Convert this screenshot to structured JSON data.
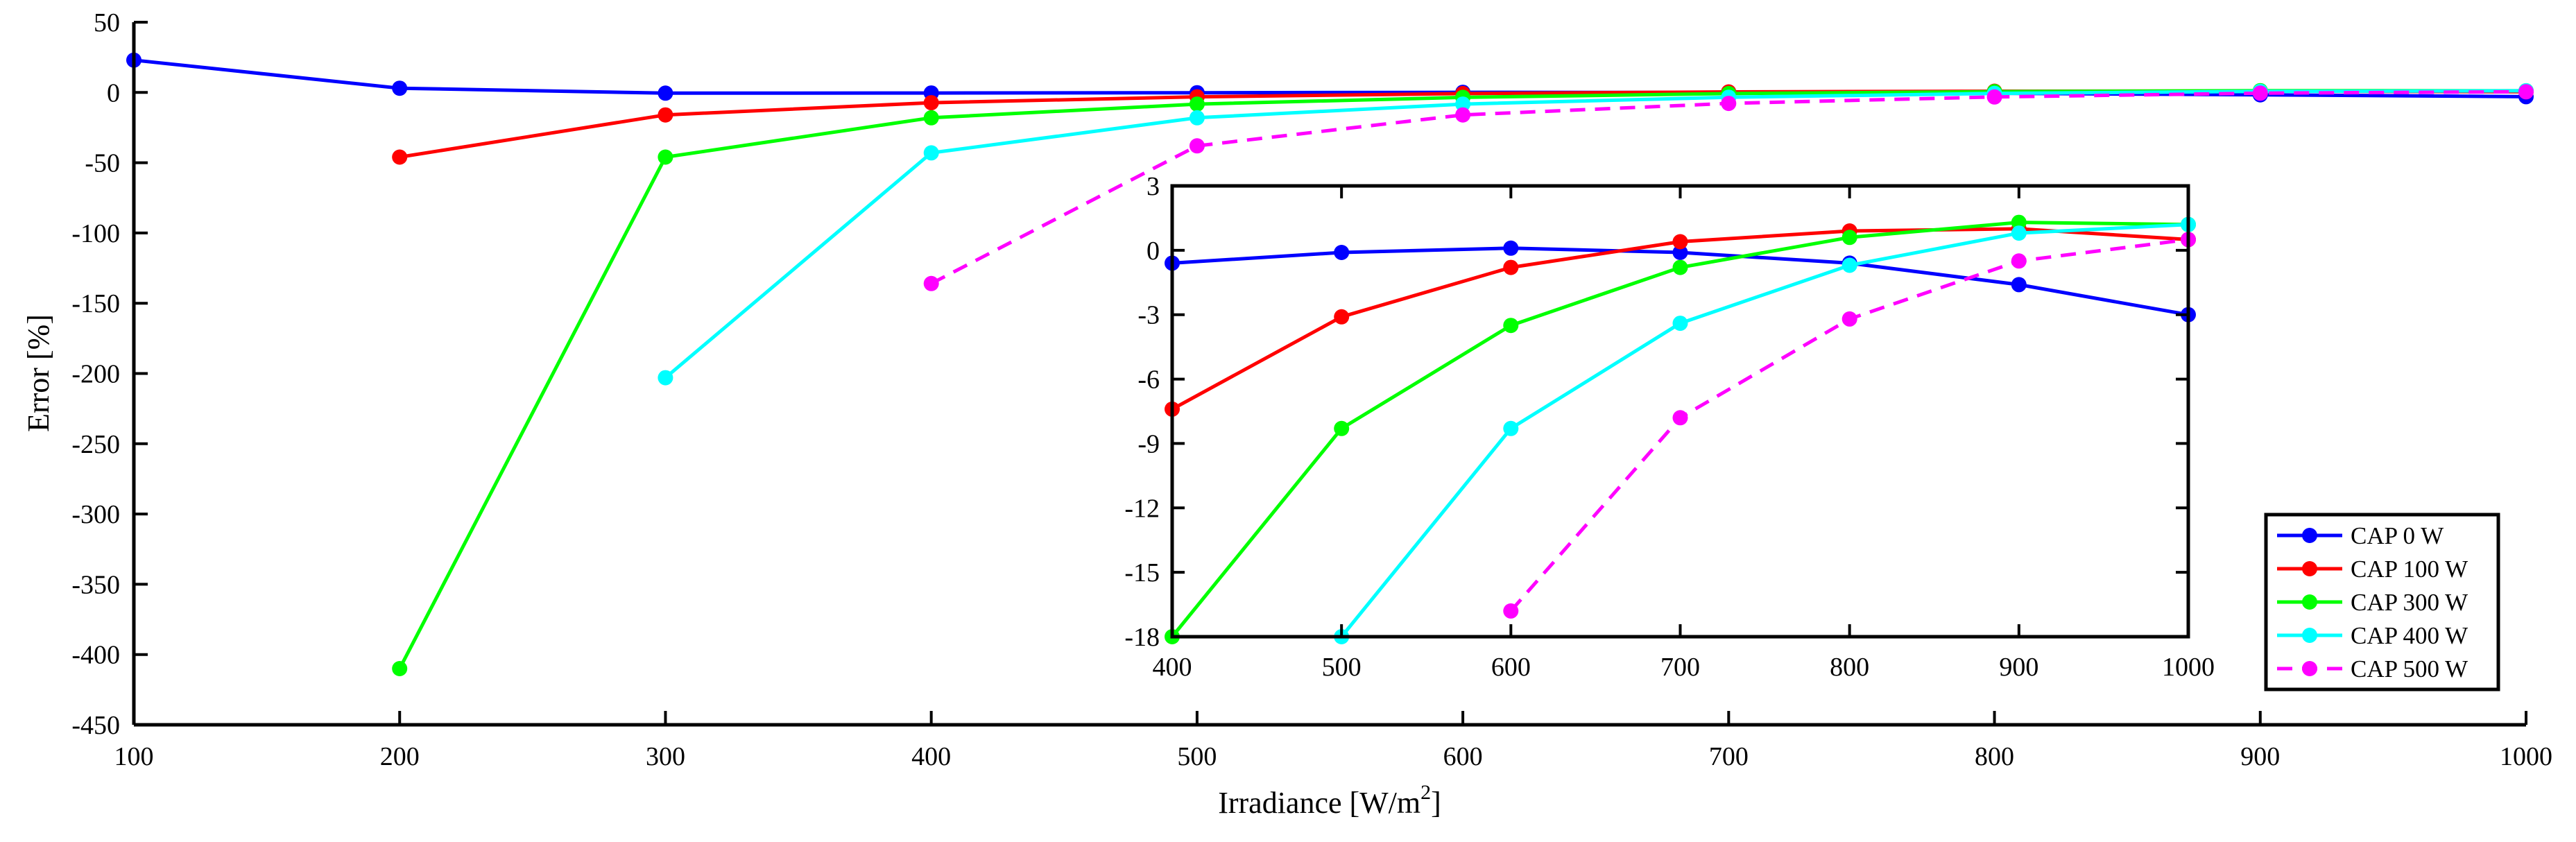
{
  "chart_data": [
    {
      "id": "main",
      "type": "line",
      "title": "",
      "xlabel": "Irradiance [W/m",
      "xlabel_sup": "2",
      "xlabel_suffix": "]",
      "ylabel": "Error [%]",
      "xlim": [
        100,
        1000
      ],
      "ylim": [
        -450,
        50
      ],
      "xticks": [
        100,
        200,
        300,
        400,
        500,
        600,
        700,
        800,
        900,
        1000
      ],
      "yticks": [
        50,
        0,
        -50,
        -100,
        -150,
        -200,
        -250,
        -300,
        -350,
        -400,
        -450
      ],
      "grid": false,
      "legend_position": "bottom-right",
      "series": [
        {
          "name": "CAP 0 W",
          "color": "#0000ff",
          "dashed": false,
          "x": [
            100,
            200,
            300,
            400,
            500,
            600,
            700,
            800,
            900,
            1000
          ],
          "y": [
            23,
            3,
            -0.5,
            -0.4,
            -0.2,
            0.1,
            0,
            -0.6,
            -1.7,
            -3
          ]
        },
        {
          "name": "CAP 100 W",
          "color": "#ff0000",
          "dashed": false,
          "x": [
            200,
            300,
            400,
            500,
            600,
            700,
            800,
            900,
            1000
          ],
          "y": [
            -46,
            -16,
            -7.3,
            -3.1,
            -0.8,
            0.4,
            0.9,
            1,
            0.5
          ]
        },
        {
          "name": "CAP 300 W",
          "color": "#00ff00",
          "dashed": false,
          "x": [
            200,
            300,
            400,
            500,
            600,
            700,
            800,
            900,
            1000
          ],
          "y": [
            -410,
            -46,
            -18,
            -8.3,
            -3.5,
            -0.8,
            0.6,
            1.3,
            1.2
          ]
        },
        {
          "name": "CAP 400 W",
          "color": "#00ffff",
          "dashed": false,
          "x": [
            300,
            400,
            500,
            600,
            700,
            800,
            900,
            1000
          ],
          "y": [
            -203,
            -43,
            -18,
            -8.3,
            -3.4,
            -0.7,
            0.8,
            1.2
          ]
        },
        {
          "name": "CAP 500 W",
          "color": "#ff00ff",
          "dashed": true,
          "x": [
            400,
            500,
            600,
            700,
            800,
            900,
            1000
          ],
          "y": [
            -136,
            -38,
            -16,
            -7.8,
            -3.2,
            -0.5,
            0.5
          ]
        }
      ]
    },
    {
      "id": "inset",
      "type": "line",
      "title": "",
      "xlabel": "",
      "ylabel": "",
      "xlim": [
        400,
        1000
      ],
      "ylim": [
        -18,
        3
      ],
      "xticks": [
        400,
        500,
        600,
        700,
        800,
        900,
        1000
      ],
      "yticks": [
        3,
        0,
        -3,
        -6,
        -9,
        -12,
        -15,
        -18
      ],
      "grid": false,
      "series": [
        {
          "name": "CAP 0 W",
          "color": "#0000ff",
          "dashed": false,
          "x": [
            400,
            500,
            600,
            700,
            800,
            900,
            1000
          ],
          "y": [
            -0.6,
            -0.1,
            0.1,
            -0.1,
            -0.6,
            -1.6,
            -3
          ]
        },
        {
          "name": "CAP 100 W",
          "color": "#ff0000",
          "dashed": false,
          "x": [
            400,
            500,
            600,
            700,
            800,
            900,
            1000
          ],
          "y": [
            -7.4,
            -3.1,
            -0.8,
            0.4,
            0.9,
            1,
            0.5
          ]
        },
        {
          "name": "CAP 300 W",
          "color": "#00ff00",
          "dashed": false,
          "x": [
            400,
            500,
            600,
            700,
            800,
            900,
            1000
          ],
          "y": [
            -18,
            -8.3,
            -3.5,
            -0.8,
            0.6,
            1.3,
            1.2
          ]
        },
        {
          "name": "CAP 400 W",
          "color": "#00ffff",
          "dashed": false,
          "x": [
            500,
            600,
            700,
            800,
            900,
            1000
          ],
          "y": [
            -18,
            -8.3,
            -3.4,
            -0.7,
            0.8,
            1.2
          ]
        },
        {
          "name": "CAP 500 W",
          "color": "#ff00ff",
          "dashed": true,
          "x": [
            600,
            700,
            800,
            900,
            1000
          ],
          "y": [
            -16.8,
            -7.8,
            -3.2,
            -0.5,
            0.5
          ]
        }
      ]
    }
  ]
}
